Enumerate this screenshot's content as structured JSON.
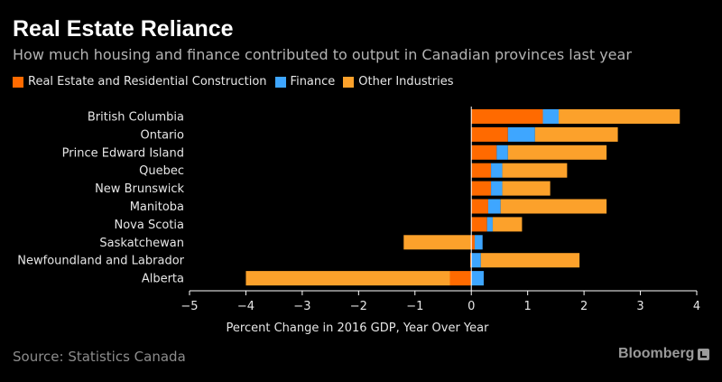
{
  "chart_data": {
    "type": "bar",
    "orientation": "horizontal",
    "stacked": true,
    "title": "Real Estate Reliance",
    "subtitle": "How much housing and finance contributed to output in Canadian provinces last year",
    "xlabel": "Percent Change in 2016 GDP, Year Over Year",
    "xlim": [
      -5,
      4
    ],
    "xticks": [
      -5,
      -4,
      -3,
      -2,
      -1,
      0,
      1,
      2,
      3,
      4
    ],
    "categories": [
      "British Columbia",
      "Ontario",
      "Prince Edward Island",
      "Quebec",
      "New Brunswick",
      "Manitoba",
      "Nova Scotia",
      "Saskatchewan",
      "Newfoundland and Labrador",
      "Alberta"
    ],
    "series": [
      {
        "name": "Real Estate and Residential Construction",
        "color": "#ff6a00",
        "values": [
          1.27,
          0.65,
          0.45,
          0.35,
          0.35,
          0.3,
          0.28,
          0.06,
          -0.02,
          -0.38
        ]
      },
      {
        "name": "Finance",
        "color": "#3ea6ff",
        "values": [
          0.28,
          0.48,
          0.2,
          0.2,
          0.2,
          0.22,
          0.1,
          0.14,
          0.17,
          0.22
        ]
      },
      {
        "name": "Other Industries",
        "color": "#fca12b",
        "values": [
          2.15,
          1.47,
          1.75,
          1.15,
          0.85,
          1.88,
          0.52,
          -1.2,
          1.75,
          -3.62
        ]
      }
    ],
    "legend_position": "top-left",
    "grid": false
  },
  "source": "Source: Statistics Canada",
  "brand": "Bloomberg"
}
